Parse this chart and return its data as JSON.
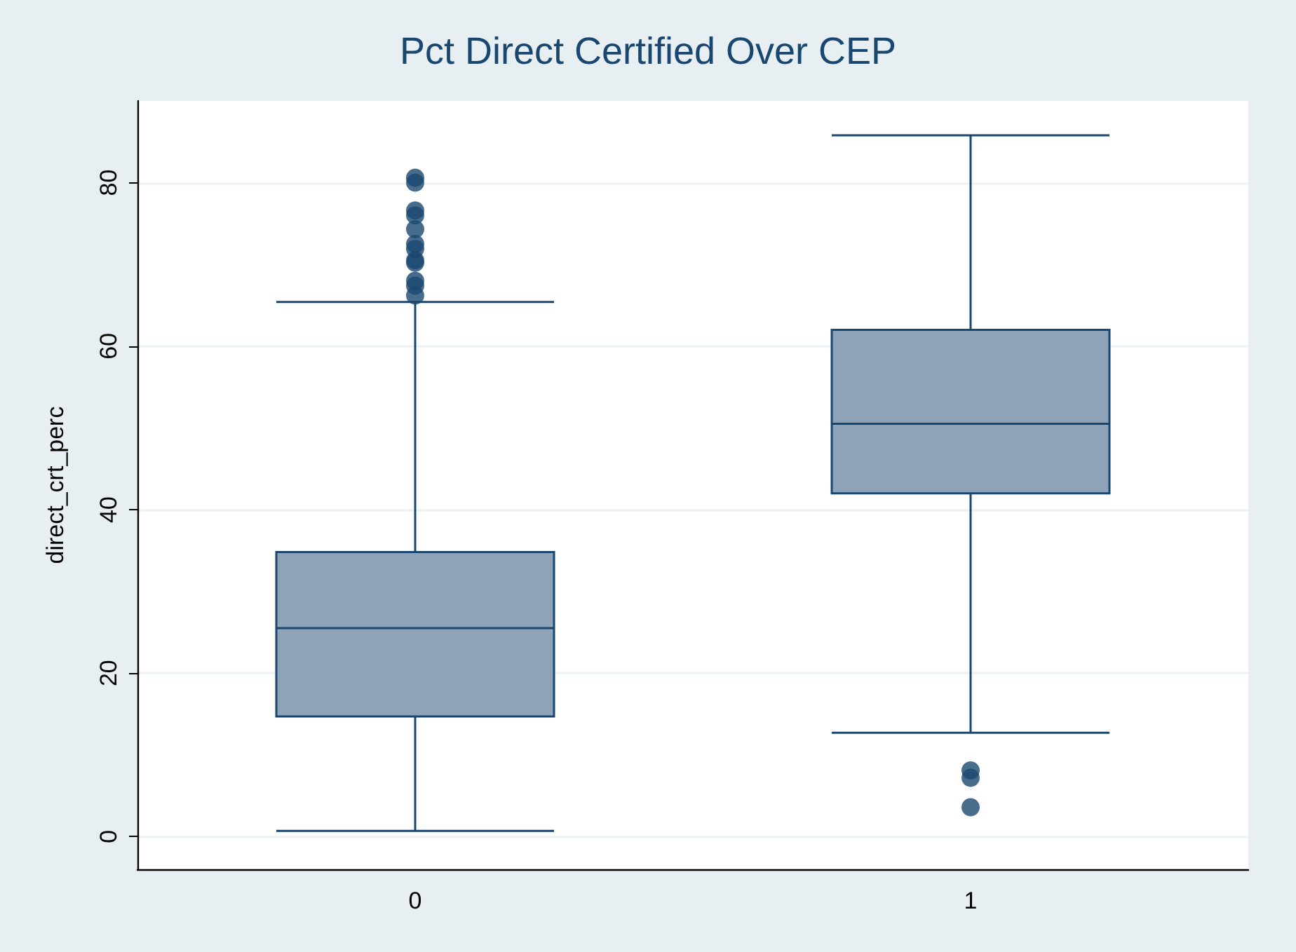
{
  "chart_data": {
    "type": "box",
    "title": "Pct Direct Certified Over CEP",
    "ylabel": "direct_crt_perc",
    "categories": [
      "0",
      "1"
    ],
    "boxes": [
      {
        "low": 0.7,
        "q1": 14.7,
        "median": 25.5,
        "q3": 34.8,
        "high": 65.4,
        "outliers": [
          80.6,
          80,
          76.6,
          76,
          74.3,
          72.5,
          71.9,
          70.5,
          70.2,
          68,
          67.4,
          66.2
        ]
      },
      {
        "low": 12.7,
        "q1": 42,
        "median": 50.5,
        "q3": 62,
        "high": 85.8,
        "outliers": [
          8.1,
          7.2,
          3.6
        ]
      }
    ],
    "color": "#8ea3b8",
    "ylim": [
      -4,
      90
    ],
    "yticks": [
      0,
      20,
      40,
      60,
      80
    ],
    "grid": "y"
  }
}
